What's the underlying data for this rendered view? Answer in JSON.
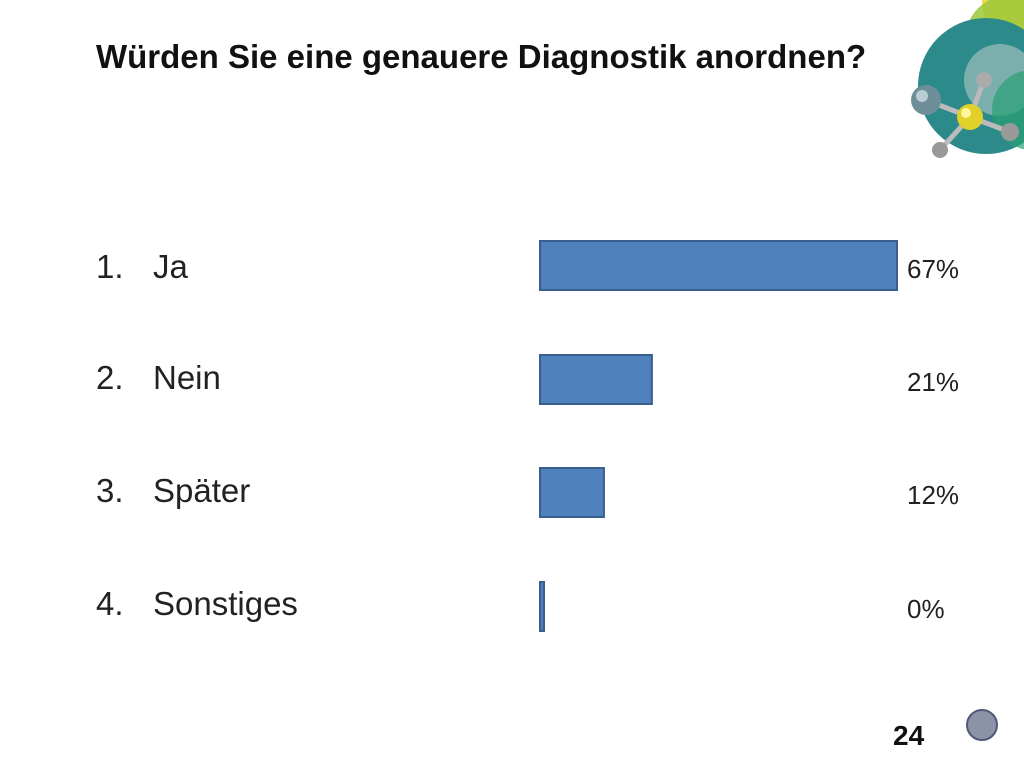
{
  "slide": {
    "title": "Würden Sie eine genauere Diagnostik anordnen?",
    "page_number": "24",
    "logo_icon": "molecule-logo-icon",
    "nav_icon": "navigation-circle-icon",
    "bar_color": "#4f81bd",
    "bar_stroke": "#3a5f8f"
  },
  "chart_data": {
    "type": "bar",
    "orientation": "horizontal",
    "categories": [
      "Ja",
      "Nein",
      "Später",
      "Sonstiges"
    ],
    "numbers": [
      "1.",
      "2.",
      "3.",
      "4."
    ],
    "values": [
      67,
      21,
      12,
      0
    ],
    "value_labels": [
      "67%",
      "21%",
      "12%",
      "0%"
    ],
    "xlim": [
      0,
      67
    ],
    "grid": false,
    "legend": "none"
  }
}
